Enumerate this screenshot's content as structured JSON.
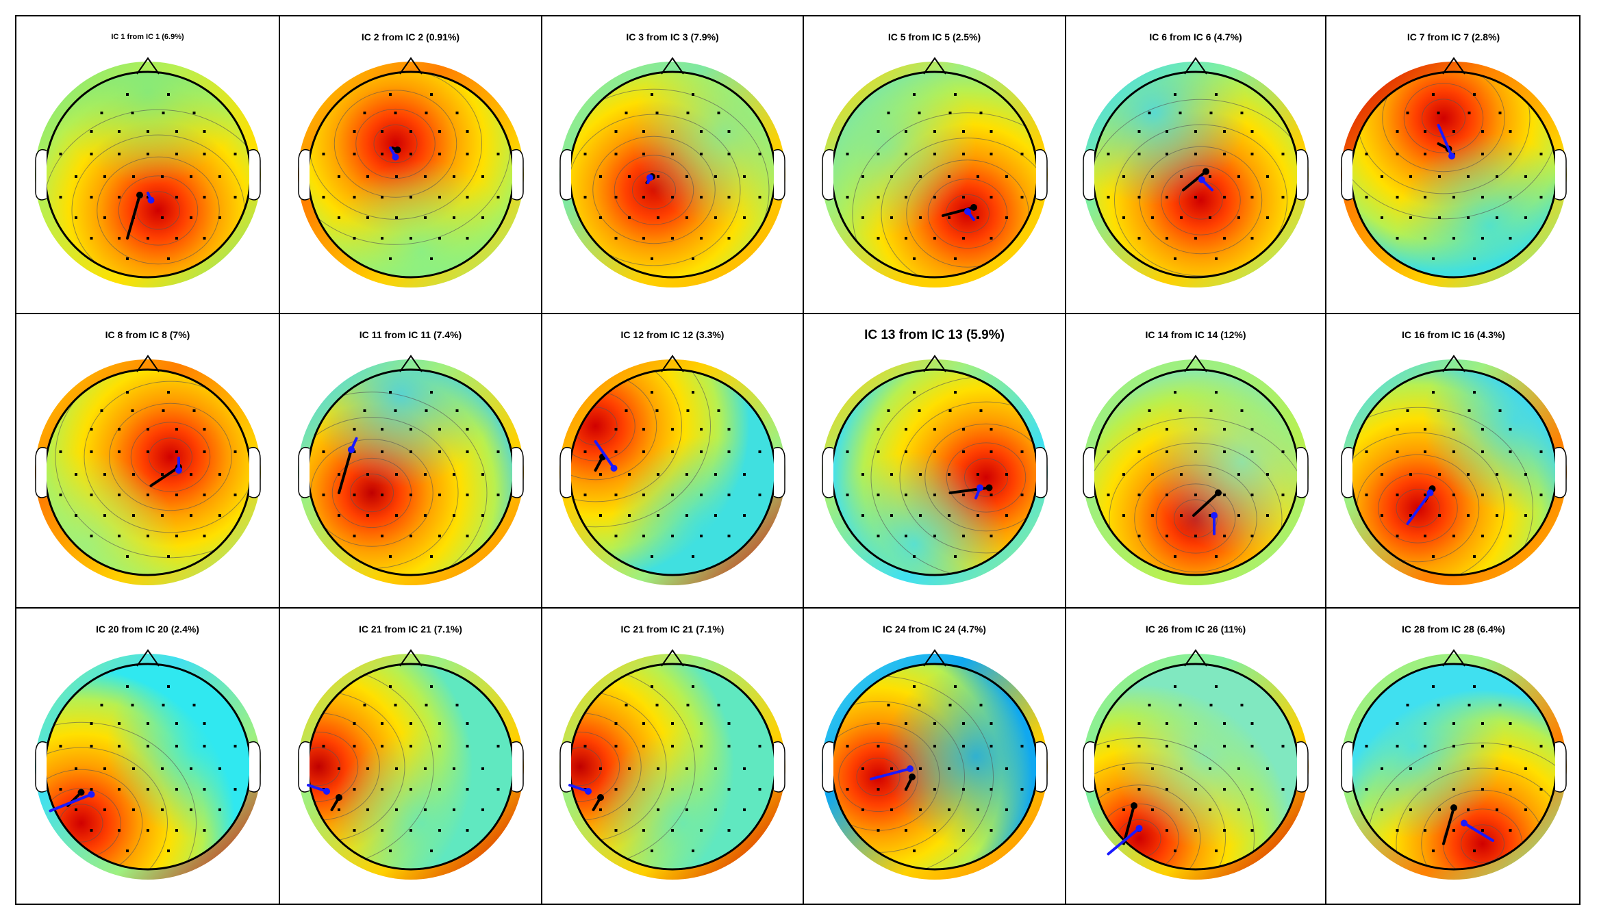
{
  "figure": {
    "rows": 3,
    "cols": 6,
    "panels": [
      {
        "title": "IC 1 from IC 1 (6.9%)",
        "size": "small",
        "peak_color": "#d00000",
        "low_color": "#7fe87f",
        "rim_colors": [
          "#7fe87f",
          "#b8f050",
          "#ffe000",
          "#7fe87f"
        ],
        "hot": [
          0.1,
          0.35
        ],
        "cold": [
          0.0,
          -0.8
        ],
        "black_dipole": [
          [
            -0.08,
            0.2
          ],
          [
            -0.2,
            0.62
          ]
        ],
        "blue_dipole": [
          [
            0.03,
            0.25
          ],
          [
            0.0,
            0.18
          ]
        ]
      },
      {
        "title": "IC 2 from IC 2 (0.91%)",
        "size": "normal",
        "peak_color": "#d00000",
        "low_color": "#80f090",
        "rim_colors": [
          "#ffd000",
          "#ff8000",
          "#ffd000",
          "#9ef080"
        ],
        "hot": [
          -0.15,
          -0.3
        ],
        "cold": [
          0.1,
          0.75
        ],
        "black_dipole": [
          [
            -0.13,
            -0.24
          ],
          [
            -0.18,
            -0.26
          ]
        ],
        "blue_dipole": [
          [
            -0.15,
            -0.17
          ],
          [
            -0.2,
            -0.26
          ]
        ]
      },
      {
        "title": "IC 3 from IC 3 (7.9%)",
        "size": "normal",
        "peak_color": "#d81000",
        "low_color": "#7fe8a0",
        "rim_colors": [
          "#9ef080",
          "#7fe8a0",
          "#ffd000",
          "#ffb000"
        ],
        "hot": [
          -0.18,
          0.15
        ],
        "cold": [
          0.5,
          -0.4
        ],
        "black_dipole": [
          [
            -0.2,
            0.02
          ],
          [
            -0.25,
            0.08
          ]
        ],
        "blue_dipole": [
          [
            -0.22,
            0.03
          ],
          [
            -0.24,
            0.08
          ]
        ]
      },
      {
        "title": "IC 5 from IC 5 (2.5%)",
        "size": "normal",
        "peak_color": "#d00000",
        "low_color": "#7fe8a0",
        "rim_colors": [
          "#ffd000",
          "#9ef080",
          "#ffd000",
          "#ffd000"
        ],
        "hot": [
          0.32,
          0.38
        ],
        "cold": [
          -0.5,
          -0.3
        ],
        "black_dipole": [
          [
            0.38,
            0.32
          ],
          [
            0.08,
            0.4
          ]
        ],
        "blue_dipole": [
          [
            0.32,
            0.36
          ],
          [
            0.38,
            0.44
          ]
        ]
      },
      {
        "title": "IC 6 from IC 6 (4.7%)",
        "size": "normal",
        "peak_color": "#d00000",
        "low_color": "#40d8f0",
        "rim_colors": [
          "#40d8f0",
          "#80f0a0",
          "#ffd000",
          "#9ef080"
        ],
        "hot": [
          0.05,
          0.25
        ],
        "cold": [
          -0.4,
          -0.6
        ],
        "black_dipole": [
          [
            0.1,
            -0.03
          ],
          [
            -0.12,
            0.15
          ]
        ],
        "blue_dipole": [
          [
            0.06,
            0.05
          ],
          [
            0.16,
            0.15
          ]
        ]
      },
      {
        "title": "IC 7 from IC 7 (2.8%)",
        "size": "normal",
        "peak_color": "#d00000",
        "low_color": "#40e0e0",
        "rim_colors": [
          "#d00000",
          "#ff8000",
          "#ffd000",
          "#80f0a0"
        ],
        "hot": [
          -0.1,
          -0.55
        ],
        "cold": [
          0.35,
          0.5
        ],
        "black_dipole": [
          [
            -0.05,
            -0.25
          ],
          [
            -0.15,
            -0.3
          ]
        ],
        "blue_dipole": [
          [
            -0.02,
            -0.18
          ],
          [
            -0.15,
            -0.48
          ]
        ]
      },
      {
        "title": "IC 8 from IC 8 (7%)",
        "size": "normal",
        "peak_color": "#d00000",
        "low_color": "#9ef080",
        "rim_colors": [
          "#ffd000",
          "#ff8000",
          "#ffd000",
          "#9ef080"
        ],
        "hot": [
          0.22,
          -0.15
        ],
        "cold": [
          -0.6,
          0.7
        ],
        "black_dipole": [
          [
            0.3,
            -0.05
          ],
          [
            0.03,
            0.13
          ]
        ],
        "blue_dipole": [
          [
            0.3,
            -0.02
          ],
          [
            0.3,
            -0.14
          ]
        ]
      },
      {
        "title": "IC 11 from IC 11 (7.4%)",
        "size": "normal",
        "peak_color": "#c00000",
        "low_color": "#40d0f0",
        "rim_colors": [
          "#40d0f0",
          "#9ef080",
          "#ffd000",
          "#ff8000"
        ],
        "hot": [
          -0.38,
          0.2
        ],
        "cold": [
          -0.1,
          -0.75
        ],
        "black_dipole": [
          [
            -0.58,
            -0.22
          ],
          [
            -0.7,
            0.2
          ]
        ],
        "blue_dipole": [
          [
            -0.58,
            -0.22
          ],
          [
            -0.53,
            -0.33
          ]
        ]
      },
      {
        "title": "IC 12 from IC 12 (3.3%)",
        "size": "normal",
        "peak_color": "#d00000",
        "low_color": "#40e0e0",
        "rim_colors": [
          "#ff8000",
          "#ffd000",
          "#9ef080",
          "#d00000"
        ],
        "hot": [
          -0.75,
          -0.45
        ],
        "cold": [
          0.3,
          0.55
        ],
        "black_dipole": [
          [
            -0.68,
            -0.15
          ],
          [
            -0.75,
            -0.02
          ]
        ],
        "blue_dipole": [
          [
            -0.57,
            -0.04
          ],
          [
            -0.75,
            -0.3
          ]
        ]
      },
      {
        "title": "IC 13 from IC 13 (5.9%)",
        "size": "big",
        "peak_color": "#d00000",
        "low_color": "#40e0f0",
        "rim_colors": [
          "#ffd000",
          "#9ef080",
          "#40e0f0",
          "#9ef080"
        ],
        "hot": [
          0.5,
          0.05
        ],
        "cold": [
          -0.2,
          0.7
        ],
        "black_dipole": [
          [
            0.53,
            0.15
          ],
          [
            0.15,
            0.2
          ]
        ],
        "blue_dipole": [
          [
            0.44,
            0.15
          ],
          [
            0.4,
            0.25
          ]
        ]
      },
      {
        "title": "IC 14 from IC 14 (12%)",
        "size": "normal",
        "peak_color": "#d00000",
        "low_color": "#80e8c0",
        "rim_colors": [
          "#9ef080",
          "#9ef080",
          "#b8f050",
          "#9ef080"
        ],
        "hot": [
          0.0,
          0.45
        ],
        "cold": [
          0.45,
          -0.1
        ],
        "black_dipole": [
          [
            0.22,
            0.2
          ],
          [
            -0.02,
            0.42
          ]
        ],
        "blue_dipole": [
          [
            0.18,
            0.42
          ],
          [
            0.18,
            0.6
          ]
        ]
      },
      {
        "title": "IC 16 from IC 16 (4.3%)",
        "size": "normal",
        "peak_color": "#d00000",
        "low_color": "#40d8f0",
        "rim_colors": [
          "#40d8f0",
          "#9ef080",
          "#ff8000",
          "#ffb000"
        ],
        "hot": [
          -0.35,
          0.35
        ],
        "cold": [
          0.6,
          -0.5
        ],
        "black_dipole": [
          [
            -0.21,
            0.16
          ],
          [
            -0.28,
            0.28
          ]
        ],
        "blue_dipole": [
          [
            -0.23,
            0.2
          ],
          [
            -0.45,
            0.5
          ]
        ]
      },
      {
        "title": "IC 20 from IC 20 (2.4%)",
        "size": "normal",
        "peak_color": "#d00000",
        "low_color": "#30e8f0",
        "rim_colors": [
          "#80f0a0",
          "#40e0f0",
          "#9ef080",
          "#d00000"
        ],
        "hot": [
          -0.65,
          0.55
        ],
        "cold": [
          0.5,
          -0.2
        ],
        "black_dipole": [
          [
            -0.65,
            0.25
          ],
          [
            -0.78,
            0.38
          ]
        ],
        "blue_dipole": [
          [
            -0.55,
            0.27
          ],
          [
            -0.95,
            0.43
          ]
        ]
      },
      {
        "title": "IC 21 from IC 21 (7.1%)",
        "size": "normal",
        "peak_color": "#c00000",
        "low_color": "#60e8c0",
        "rim_colors": [
          "#ffd000",
          "#9ef080",
          "#ffd000",
          "#d00000"
        ],
        "hot": [
          -0.9,
          0.0
        ],
        "cold": [
          0.1,
          0.55
        ],
        "black_dipole": [
          [
            -0.7,
            0.3
          ],
          [
            -0.77,
            0.42
          ]
        ],
        "blue_dipole": [
          [
            -0.82,
            0.24
          ],
          [
            -1.0,
            0.18
          ]
        ]
      },
      {
        "title": "IC 21 from IC 21 (7.1%)",
        "size": "normal",
        "peak_color": "#c00000",
        "low_color": "#60e8c0",
        "rim_colors": [
          "#ffd000",
          "#9ef080",
          "#ffd000",
          "#d00000"
        ],
        "hot": [
          -0.9,
          0.0
        ],
        "cold": [
          0.1,
          0.55
        ],
        "black_dipole": [
          [
            -0.7,
            0.3
          ],
          [
            -0.77,
            0.42
          ]
        ],
        "blue_dipole": [
          [
            -0.82,
            0.24
          ],
          [
            -1.0,
            0.18
          ]
        ]
      },
      {
        "title": "IC 24 from IC 24 (4.7%)",
        "size": "normal",
        "peak_color": "#d00000",
        "low_color": "#10a8f0",
        "rim_colors": [
          "#40d8f0",
          "#10a8f0",
          "#ffd000",
          "#ff8000"
        ],
        "hot": [
          -0.55,
          0.1
        ],
        "cold": [
          0.4,
          -0.1
        ],
        "black_dipole": [
          [
            -0.22,
            0.1
          ],
          [
            -0.28,
            0.22
          ]
        ],
        "blue_dipole": [
          [
            -0.24,
            0.02
          ],
          [
            -0.62,
            0.12
          ]
        ]
      },
      {
        "title": "IC 26 from IC 26 (11%)",
        "size": "normal",
        "peak_color": "#d00000",
        "low_color": "#80e8c0",
        "rim_colors": [
          "#9ef080",
          "#80f0a0",
          "#ffd000",
          "#d00000"
        ],
        "hot": [
          -0.55,
          0.7
        ],
        "cold": [
          0.1,
          -0.1
        ],
        "black_dipole": [
          [
            -0.6,
            0.38
          ],
          [
            -0.7,
            0.75
          ]
        ],
        "blue_dipole": [
          [
            -0.55,
            0.6
          ],
          [
            -0.85,
            0.85
          ]
        ]
      },
      {
        "title": "IC 28 from IC 28 (6.4%)",
        "size": "normal",
        "peak_color": "#d00000",
        "low_color": "#40e0f0",
        "rim_colors": [
          "#9ef080",
          "#9ef080",
          "#ff8000",
          "#80f0a0"
        ],
        "hot": [
          0.28,
          0.75
        ],
        "cold": [
          -0.4,
          -0.2
        ],
        "black_dipole": [
          [
            0.0,
            0.4
          ],
          [
            -0.1,
            0.75
          ]
        ],
        "blue_dipole": [
          [
            0.1,
            0.55
          ],
          [
            0.38,
            0.72
          ]
        ]
      }
    ]
  }
}
